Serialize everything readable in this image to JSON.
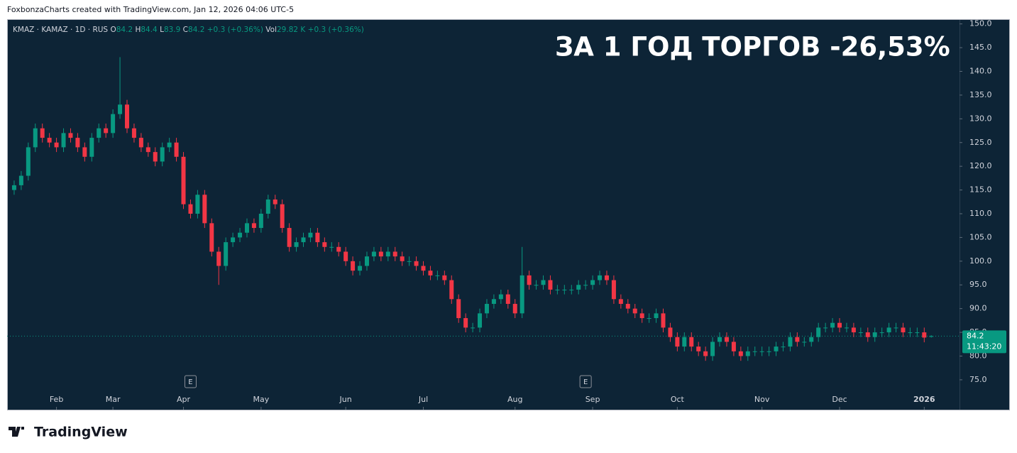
{
  "header": "FoxbonzaCharts created with TradingView.com, Jan 12, 2026 04:06 UTC-5",
  "footer_brand": "TradingView",
  "chart_data": {
    "type": "candlestick",
    "annotation": "ЗА 1 ГОД ТОРГОВ -26,53%",
    "legend": {
      "symbol": "KMAZ · KAMAZ · 1D · RUS",
      "open_label": "O",
      "open": 84.2,
      "high_label": "H",
      "high": 84.4,
      "low_label": "L",
      "low": 83.9,
      "close_label": "C",
      "close": 84.2,
      "change": "+0.3 (+0.36%)",
      "volume_label": "Vol",
      "volume": "29.82 K",
      "volume_change": "+0.3 (+0.36%)"
    },
    "up_color": "#089981",
    "down_color": "#f23645",
    "open": [
      115,
      116,
      118,
      124,
      128,
      126,
      125,
      124,
      127,
      126,
      124,
      122,
      126,
      128,
      127,
      131,
      133,
      128,
      126,
      124,
      123,
      121,
      124,
      125,
      122,
      112,
      110,
      114,
      108,
      102,
      99,
      104,
      105,
      106,
      108,
      107,
      110,
      113,
      112,
      107,
      103,
      104,
      105,
      106,
      104,
      103,
      103,
      102,
      100,
      98,
      99,
      101,
      102,
      101,
      102,
      101,
      100,
      100,
      99,
      98,
      97,
      97,
      96,
      92,
      88,
      86,
      86,
      89,
      91,
      92,
      93,
      91,
      89,
      97,
      95,
      95,
      96,
      94,
      94,
      94,
      94,
      95,
      95,
      96,
      97,
      96,
      92,
      91,
      90,
      89,
      88,
      88,
      89,
      86,
      84,
      82,
      84,
      82,
      81,
      80,
      83,
      84,
      83,
      81,
      80,
      81,
      81,
      81,
      81,
      82,
      82,
      84,
      83,
      83,
      84,
      86,
      86,
      87,
      86,
      86,
      85,
      85,
      84,
      85,
      85,
      86,
      86,
      85,
      85,
      85,
      84.2
    ],
    "high": [
      117,
      119,
      125,
      129,
      129,
      127,
      126,
      128,
      128,
      127,
      125,
      127,
      129,
      129,
      132,
      143,
      134,
      129,
      127,
      125,
      124,
      125,
      126,
      126,
      123,
      113,
      115,
      115,
      109,
      103,
      105,
      106,
      107,
      109,
      109,
      111,
      114,
      114,
      113,
      108,
      105,
      106,
      107,
      107,
      105,
      104,
      104,
      103,
      101,
      100,
      102,
      103,
      103,
      103,
      103,
      102,
      101,
      101,
      100,
      99,
      98,
      98,
      97,
      93,
      89,
      87,
      90,
      92,
      93,
      94,
      94,
      92,
      103,
      98,
      96,
      97,
      97,
      95,
      95,
      95,
      96,
      96,
      97,
      98,
      98,
      97,
      93,
      92,
      91,
      90,
      89,
      90,
      90,
      87,
      85,
      85,
      85,
      83,
      82,
      84,
      85,
      85,
      84,
      82,
      82,
      82,
      82,
      82,
      83,
      83,
      85,
      85,
      84,
      85,
      87,
      87,
      88,
      88,
      87,
      87,
      86,
      86,
      86,
      86,
      87,
      87,
      87,
      86,
      86,
      86,
      84.4
    ],
    "low": [
      114,
      115,
      117,
      123,
      125,
      124,
      123,
      123,
      125,
      123,
      121,
      121,
      125,
      126,
      126,
      130,
      127,
      125,
      123,
      122,
      120,
      120,
      123,
      121,
      111,
      109,
      109,
      107,
      101,
      95,
      98,
      103,
      104,
      105,
      106,
      106,
      109,
      111,
      106,
      102,
      102,
      103,
      104,
      103,
      102,
      102,
      101,
      99,
      97,
      97,
      98,
      100,
      100,
      100,
      100,
      99,
      99,
      98,
      97,
      96,
      96,
      95,
      91,
      87,
      85,
      85,
      85,
      88,
      90,
      91,
      90,
      88,
      88,
      94,
      94,
      94,
      93,
      93,
      93,
      93,
      93,
      94,
      94,
      95,
      95,
      91,
      90,
      89,
      88,
      87,
      87,
      87,
      85,
      83,
      81,
      81,
      81,
      80,
      79,
      79,
      82,
      82,
      80,
      79,
      79,
      80,
      80,
      80,
      80,
      81,
      81,
      82,
      82,
      82,
      83,
      85,
      85,
      85,
      85,
      84,
      84,
      83,
      83,
      84,
      84,
      85,
      84,
      84,
      84,
      82.9,
      83.9
    ],
    "close": [
      116,
      118,
      124,
      128,
      126,
      125,
      124,
      127,
      126,
      124,
      122,
      126,
      128,
      127,
      131,
      133,
      128,
      126,
      124,
      123,
      121,
      124,
      125,
      122,
      112,
      110,
      114,
      108,
      102,
      99,
      104,
      105,
      106,
      108,
      107,
      110,
      113,
      112,
      107,
      103,
      104,
      105,
      106,
      104,
      103,
      103,
      102,
      100,
      98,
      99,
      101,
      102,
      101,
      102,
      101,
      100,
      100,
      99,
      98,
      97,
      97,
      96,
      92,
      88,
      86,
      86,
      89,
      91,
      92,
      93,
      91,
      89,
      97,
      95,
      95,
      96,
      94,
      94,
      94,
      94,
      95,
      95,
      96,
      97,
      96,
      92,
      91,
      90,
      89,
      88,
      88,
      89,
      86,
      84,
      82,
      84,
      82,
      81,
      80,
      83,
      84,
      83,
      81,
      80,
      81,
      81,
      81,
      81,
      82,
      82,
      84,
      83,
      83,
      84,
      86,
      86,
      87,
      86,
      86,
      85,
      85,
      84,
      85,
      85,
      86,
      86,
      85,
      85,
      85,
      83.9,
      84.2
    ],
    "xlim": [
      -1,
      134
    ],
    "xticks": [
      {
        "value": 6,
        "label": "Feb"
      },
      {
        "value": 14,
        "label": "Mar"
      },
      {
        "value": 24,
        "label": "Apr"
      },
      {
        "value": 35,
        "label": "May"
      },
      {
        "value": 47,
        "label": "Jun"
      },
      {
        "value": 58,
        "label": "Jul"
      },
      {
        "value": 71,
        "label": "Aug"
      },
      {
        "value": 82,
        "label": "Sep"
      },
      {
        "value": 94,
        "label": "Oct"
      },
      {
        "value": 106,
        "label": "Nov"
      },
      {
        "value": 117,
        "label": "Dec"
      },
      {
        "value": 129,
        "label": "2026"
      }
    ],
    "ylim": [
      68.7,
      151
    ],
    "yticks": [
      {
        "value": 75,
        "label": "75.0"
      },
      {
        "value": 80,
        "label": "80.0"
      },
      {
        "value": 85,
        "label": "85.0"
      },
      {
        "value": 90,
        "label": "90.0"
      },
      {
        "value": 95,
        "label": "95.0"
      },
      {
        "value": 100,
        "label": "100.0"
      },
      {
        "value": 105,
        "label": "105.0"
      },
      {
        "value": 110,
        "label": "110.0"
      },
      {
        "value": 115,
        "label": "115.0"
      },
      {
        "value": 120,
        "label": "120.0"
      },
      {
        "value": 125,
        "label": "125.0"
      },
      {
        "value": 130,
        "label": "130.0"
      },
      {
        "value": 135,
        "label": "135.0"
      },
      {
        "value": 140,
        "label": "140.0"
      },
      {
        "value": 145,
        "label": "145.0"
      },
      {
        "value": 150,
        "label": "150.0"
      }
    ],
    "last_price": 84.2,
    "countdown": "11:43:20",
    "events": [
      {
        "x": 25,
        "label": "E"
      },
      {
        "x": 81,
        "label": "E"
      }
    ]
  }
}
